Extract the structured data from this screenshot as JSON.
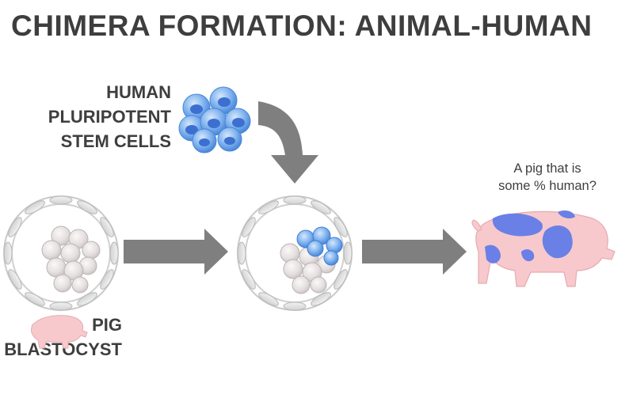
{
  "title": "CHIMERA FORMATION: ANIMAL-HUMAN",
  "labels": {
    "human_cells": [
      "HUMAN",
      "PLURIPOTENT",
      "STEM CELLS"
    ],
    "pig_blastocyst": [
      "PIG",
      "BLASTOCYST"
    ],
    "result_question": [
      "A pig that is",
      "some % human?"
    ]
  },
  "colors": {
    "text": "#3e3e3e",
    "arrow": "#7f7f7f",
    "human_cell": "#6fa3e6",
    "pig_cell": "#e2dcdc",
    "pig_body": "#f7c9cc",
    "human_patch": "#6a80e6"
  }
}
